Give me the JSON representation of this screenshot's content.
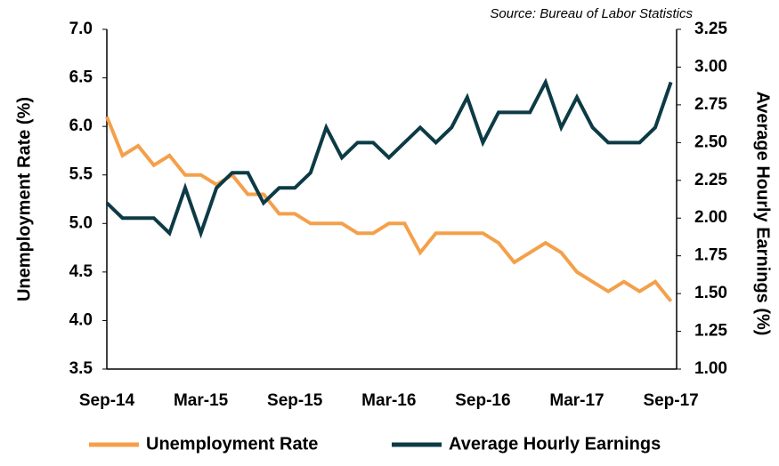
{
  "chart_data": {
    "type": "line",
    "source": "Source: Bureau of Labor Statistics",
    "y_label": "Unemployment Rate (%)",
    "y2_label": "Average Hourly Earnings (%)",
    "categories": [
      "Sep-14",
      null,
      null,
      null,
      null,
      null,
      "Mar-15",
      null,
      null,
      null,
      null,
      null,
      "Sep-15",
      null,
      null,
      null,
      null,
      null,
      "Mar-16",
      null,
      null,
      null,
      null,
      null,
      "Sep-16",
      null,
      null,
      null,
      null,
      null,
      "Mar-17",
      null,
      null,
      null,
      null,
      null,
      "Sep-17"
    ],
    "series": [
      {
        "name": "Unemployment Rate",
        "color": "#f4a04b",
        "axis": "y",
        "values": [
          6.1,
          5.7,
          5.8,
          5.6,
          5.7,
          5.5,
          5.5,
          5.4,
          5.5,
          5.3,
          5.3,
          5.1,
          5.1,
          5.0,
          5.0,
          5.0,
          4.9,
          4.9,
          5.0,
          5.0,
          4.7,
          4.9,
          4.9,
          4.9,
          4.9,
          4.8,
          4.6,
          4.7,
          4.8,
          4.7,
          4.5,
          4.4,
          4.3,
          4.4,
          4.3,
          4.4,
          4.2
        ]
      },
      {
        "name": "Average Hourly Earnings",
        "color": "#0d3b45",
        "axis": "y2",
        "values": [
          2.1,
          2.0,
          2.0,
          2.0,
          1.9,
          2.2,
          1.9,
          2.2,
          2.3,
          2.3,
          2.1,
          2.2,
          2.2,
          2.3,
          2.6,
          2.4,
          2.5,
          2.5,
          2.4,
          2.5,
          2.6,
          2.5,
          2.6,
          2.8,
          2.5,
          2.7,
          2.7,
          2.7,
          2.9,
          2.6,
          2.8,
          2.6,
          2.5,
          2.5,
          2.5,
          2.6,
          2.9
        ]
      }
    ],
    "ylim": [
      3.5,
      7.0
    ],
    "yticks": [
      3.5,
      {
        "value": 4,
        "label": "4.0"
      },
      4.5,
      {
        "value": 5,
        "label": "5.0"
      },
      5.5,
      {
        "value": 6,
        "label": "6.0"
      },
      6.5,
      {
        "value": 7,
        "label": "7.0"
      }
    ],
    "y2lim": [
      1.0,
      3.25
    ],
    "y2ticks": [
      {
        "value": 1,
        "label": "1.00"
      },
      {
        "value": 1.25,
        "label": "1.25"
      },
      {
        "value": 1.5,
        "label": "1.50"
      },
      {
        "value": 1.75,
        "label": "1.75"
      },
      {
        "value": 2,
        "label": "2.00"
      },
      {
        "value": 2.25,
        "label": "2.25"
      },
      {
        "value": 2.5,
        "label": "2.50"
      },
      {
        "value": 2.75,
        "label": "2.75"
      },
      {
        "value": 3,
        "label": "3.00"
      },
      {
        "value": 3.25,
        "label": "3.25"
      }
    ],
    "grid": false,
    "legend": "bottom"
  }
}
